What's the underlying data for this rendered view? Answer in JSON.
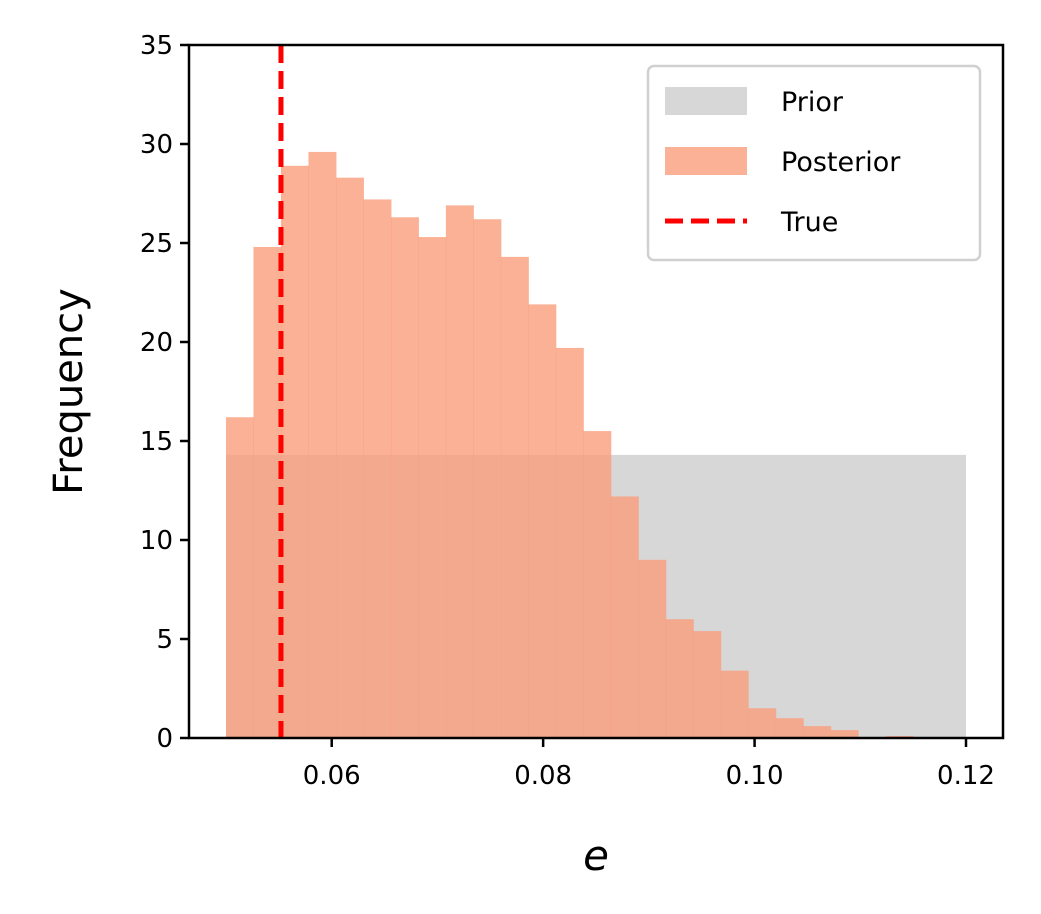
{
  "chart_data": {
    "type": "bar",
    "subtype": "histogram",
    "title": "",
    "xlabel": "e",
    "ylabel": "Frequency",
    "xlim": [
      0.0465,
      0.1235
    ],
    "ylim": [
      0,
      35
    ],
    "xticks": [
      0.06,
      0.08,
      0.1,
      0.12
    ],
    "xtick_labels": [
      "0.06",
      "0.08",
      "0.10",
      "0.12"
    ],
    "yticks": [
      0,
      5,
      10,
      15,
      20,
      25,
      30,
      35
    ],
    "ytick_labels": [
      "0",
      "5",
      "10",
      "15",
      "20",
      "25",
      "30",
      "35"
    ],
    "grid": false,
    "legend_position": "upper-right",
    "series": [
      {
        "name": "Prior",
        "color": "#d7d7d7",
        "bins": [
          {
            "x0": 0.05,
            "x1": 0.12,
            "value": 14.3
          }
        ]
      },
      {
        "name": "Posterior",
        "color": "#fa9e7c",
        "opacity": 0.8,
        "bin_edges": [
          0.05,
          0.0526,
          0.0552,
          0.0578,
          0.0604,
          0.063,
          0.0656,
          0.0682,
          0.0708,
          0.0734,
          0.076,
          0.0786,
          0.0812,
          0.0838,
          0.0864,
          0.089,
          0.0916,
          0.0942,
          0.0968,
          0.0994,
          0.102,
          0.1046,
          0.1072,
          0.1098,
          0.1124,
          0.115
        ],
        "values": [
          16.2,
          24.8,
          28.9,
          29.6,
          28.3,
          27.2,
          26.3,
          25.3,
          26.9,
          26.2,
          24.3,
          21.9,
          19.7,
          15.5,
          12.2,
          9.0,
          6.0,
          5.4,
          3.4,
          1.5,
          1.0,
          0.6,
          0.4,
          0.0,
          0.1
        ]
      }
    ],
    "reference_lines": [
      {
        "name": "True",
        "x": 0.0552,
        "color": "#ff0000",
        "style": "dashed"
      }
    ]
  }
}
